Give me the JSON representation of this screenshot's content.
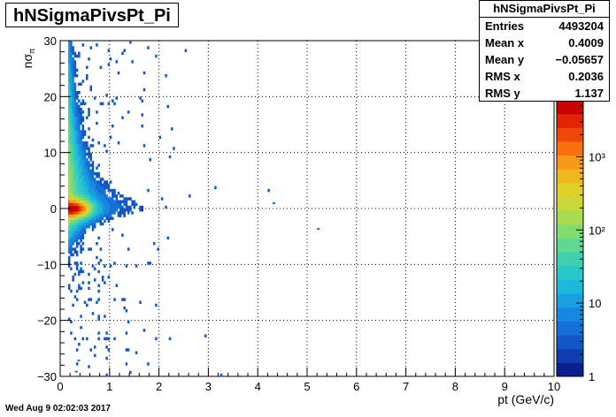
{
  "chart_data": {
    "type": "heatmap",
    "title": "hNSigmaPivsPt_Pi",
    "xlabel": "pt (GeV/c)",
    "ylabel_main": "nσ",
    "ylabel_sub": "π",
    "xlim": [
      0,
      10
    ],
    "ylim": [
      -30,
      30
    ],
    "x_ticks": [
      "0",
      "1",
      "2",
      "3",
      "4",
      "5",
      "6",
      "7",
      "8",
      "9",
      "10"
    ],
    "y_ticks": [
      "−30",
      "−20",
      "−10",
      "0",
      "10",
      "20",
      "30"
    ],
    "grid": true,
    "z_scale": "log",
    "z_ticks": [
      "1",
      "10",
      "10²",
      "10³"
    ],
    "peak": {
      "x": 0.3,
      "y": 0.0
    },
    "stats": {
      "title": "hNSigmaPivsPt_Pi",
      "rows": [
        {
          "label": "Entries",
          "value": "4493204"
        },
        {
          "label": "Mean x",
          "value": "0.4009"
        },
        {
          "label": "Mean y",
          "value": "−0.05657"
        },
        {
          "label": "RMS x",
          "value": "0.2036"
        },
        {
          "label": "RMS y",
          "value": "1.137"
        }
      ]
    }
  },
  "footer": "Wed Aug  9 02:02:03 2017"
}
